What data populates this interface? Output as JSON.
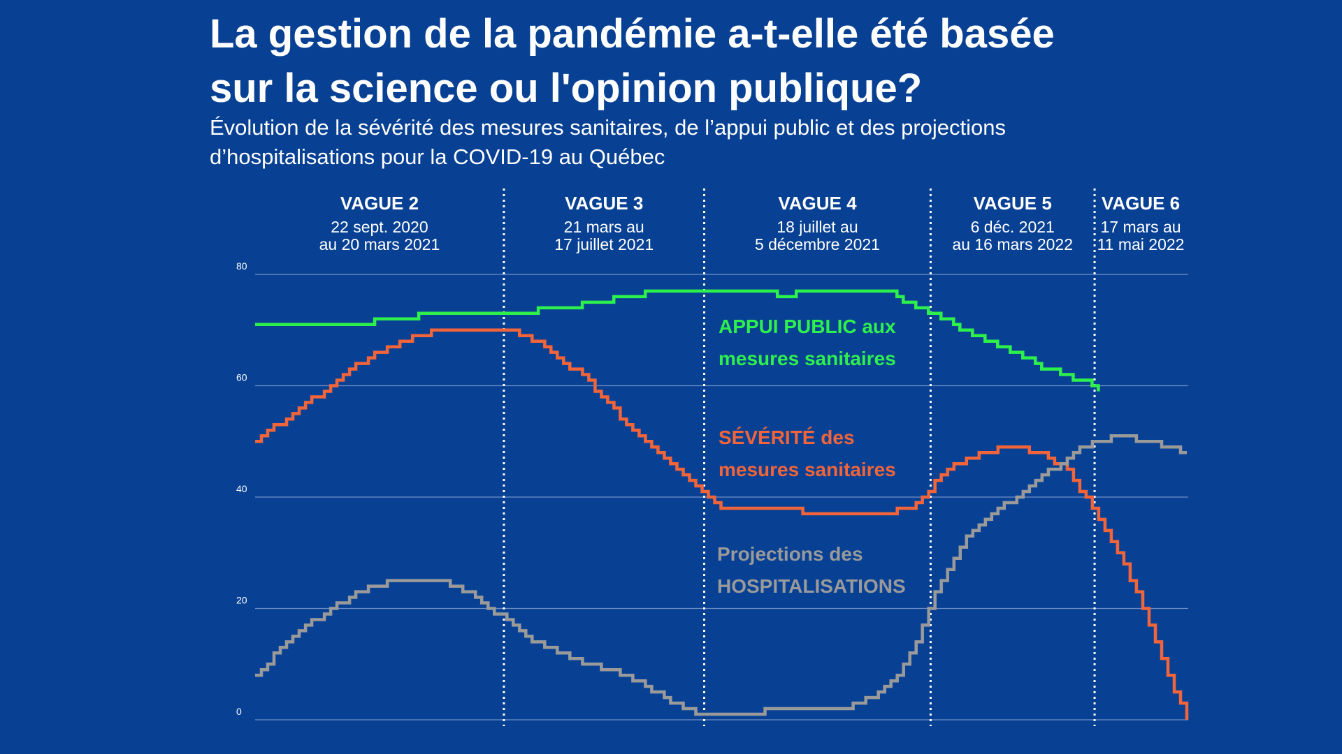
{
  "title_lines": [
    "La gestion de la pandémie a-t-elle été basée",
    "sur la science ou l'opinion publique?"
  ],
  "subtitle_lines": [
    "Évolution de la sévérité des mesures sanitaires, de l’appui public et des projections",
    "d’hospitalisations pour la COVID-19 au Québec"
  ],
  "colors": {
    "background": "#084194",
    "appui": "#2ef04d",
    "severite": "#f2643a",
    "hospitalisations": "#9a9a9a",
    "grid": "#6f8fc4",
    "separator": "#ffffff"
  },
  "chart_data": {
    "type": "line",
    "x_range": [
      0,
      1
    ],
    "ylim": [
      0,
      80
    ],
    "yticks": [
      "0",
      "20",
      "40",
      "60",
      "80"
    ],
    "grid": true,
    "waves": [
      {
        "name": "VAGUE 2",
        "dates": [
          "22 sept. 2020",
          "au 20 mars 2021"
        ],
        "start": 0.0,
        "end": 0.267
      },
      {
        "name": "VAGUE 3",
        "dates": [
          "21 mars au",
          "17 juillet 2021"
        ],
        "start": 0.267,
        "end": 0.482
      },
      {
        "name": "VAGUE 4",
        "dates": [
          "18 juillet au",
          "5 décembre 2021"
        ],
        "start": 0.482,
        "end": 0.725
      },
      {
        "name": "VAGUE 5",
        "dates": [
          "6 déc. 2021",
          "au 16 mars 2022"
        ],
        "start": 0.725,
        "end": 0.901
      },
      {
        "name": "VAGUE 6",
        "dates": [
          "17 mars au",
          "11 mai 2022"
        ],
        "start": 0.901,
        "end": 1.0
      }
    ],
    "series": [
      {
        "key": "appui",
        "label_lines": [
          "APPUI PUBLIC aux",
          "mesures sanitaires"
        ],
        "points": [
          [
            0.0,
            71
          ],
          [
            0.1,
            71
          ],
          [
            0.2,
            73
          ],
          [
            0.27,
            73
          ],
          [
            0.33,
            74
          ],
          [
            0.43,
            77
          ],
          [
            0.55,
            77
          ],
          [
            0.56,
            76
          ],
          [
            0.59,
            77
          ],
          [
            0.68,
            77
          ],
          [
            0.7,
            75
          ],
          [
            0.73,
            73
          ],
          [
            0.76,
            70
          ],
          [
            0.8,
            67
          ],
          [
            0.85,
            63
          ],
          [
            0.9,
            60
          ],
          [
            0.905,
            59
          ]
        ]
      },
      {
        "key": "severite",
        "label_lines": [
          "SÉVÉRITÉ des",
          "mesures sanitaires"
        ],
        "points": [
          [
            0.0,
            50
          ],
          [
            0.04,
            55
          ],
          [
            0.08,
            60
          ],
          [
            0.12,
            65
          ],
          [
            0.16,
            68
          ],
          [
            0.19,
            70
          ],
          [
            0.2,
            70
          ],
          [
            0.27,
            70
          ],
          [
            0.3,
            68
          ],
          [
            0.35,
            62
          ],
          [
            0.4,
            53
          ],
          [
            0.45,
            45
          ],
          [
            0.48,
            41
          ],
          [
            0.5,
            38
          ],
          [
            0.57,
            38
          ],
          [
            0.6,
            37
          ],
          [
            0.67,
            37
          ],
          [
            0.7,
            38
          ],
          [
            0.72,
            41
          ],
          [
            0.75,
            46
          ],
          [
            0.78,
            48
          ],
          [
            0.81,
            49
          ],
          [
            0.84,
            48
          ],
          [
            0.87,
            45
          ],
          [
            0.9,
            38
          ],
          [
            0.93,
            29
          ],
          [
            0.96,
            17
          ],
          [
            0.985,
            6
          ],
          [
            1.0,
            0
          ]
        ]
      },
      {
        "key": "hospitalisations",
        "label_lines": [
          "Projections des",
          "HOSPITALISATIONS"
        ],
        "points": [
          [
            0.0,
            8
          ],
          [
            0.04,
            15
          ],
          [
            0.08,
            20
          ],
          [
            0.12,
            24
          ],
          [
            0.16,
            25
          ],
          [
            0.2,
            25
          ],
          [
            0.23,
            23
          ],
          [
            0.26,
            19
          ],
          [
            0.3,
            14
          ],
          [
            0.34,
            11
          ],
          [
            0.4,
            8
          ],
          [
            0.45,
            3
          ],
          [
            0.48,
            1
          ],
          [
            0.53,
            1
          ],
          [
            0.56,
            2
          ],
          [
            0.6,
            2
          ],
          [
            0.63,
            2
          ],
          [
            0.66,
            4
          ],
          [
            0.69,
            8
          ],
          [
            0.71,
            14
          ],
          [
            0.73,
            23
          ],
          [
            0.76,
            32
          ],
          [
            0.8,
            38
          ],
          [
            0.84,
            43
          ],
          [
            0.87,
            47
          ],
          [
            0.9,
            50
          ],
          [
            0.93,
            51
          ],
          [
            0.96,
            50
          ],
          [
            1.0,
            48
          ]
        ]
      }
    ]
  }
}
